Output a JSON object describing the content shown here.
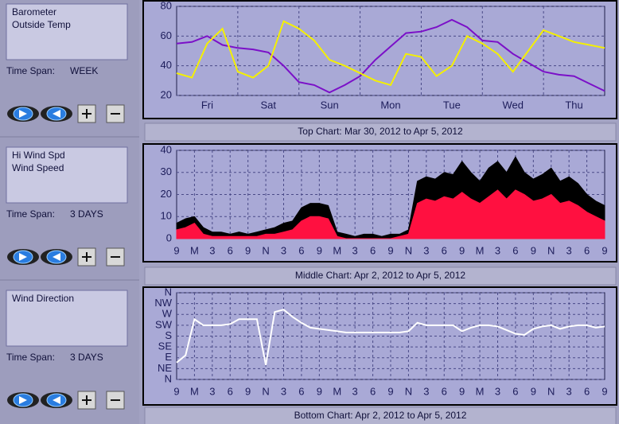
{
  "panels": [
    {
      "labels": [
        "Barometer",
        "Outside Temp"
      ],
      "time_span_label": "Time Span:",
      "time_span": "WEEK",
      "caption": "Top Chart:  Mar 30, 2012  to  Apr 5, 2012",
      "chart": {
        "type": "line",
        "categories": [
          "Fri",
          "Sat",
          "Sun",
          "Mon",
          "Tue",
          "Wed",
          "Thu"
        ],
        "ylim": [
          20,
          80
        ],
        "yticks": [
          20,
          40,
          60,
          80
        ],
        "grid": true,
        "series": [
          {
            "name": "Barometer",
            "color": "#7b10c8",
            "values": [
              55,
              56,
              60,
              54,
              52,
              51,
              49,
              40,
              29,
              27,
              22,
              27,
              33,
              44,
              53,
              62,
              63,
              66,
              71,
              66,
              57,
              56,
              48,
              42,
              36,
              34,
              33,
              28,
              23
            ]
          },
          {
            "name": "Outside Temp",
            "color": "#f4f000",
            "values": [
              35,
              32,
              55,
              65,
              36,
              32,
              40,
              70,
              65,
              57,
              44,
              40,
              35,
              30,
              27,
              48,
              46,
              33,
              40,
              60,
              55,
              48,
              36,
              50,
              64,
              60,
              56,
              54,
              52
            ]
          }
        ]
      }
    },
    {
      "labels": [
        "Hi Wind Spd",
        "Wind Speed"
      ],
      "time_span_label": "Time Span:",
      "time_span": "3 DAYS",
      "caption": "Middle Chart:  Apr 2, 2012  to  Apr 5, 2012",
      "chart": {
        "type": "area",
        "x_labels": [
          "9",
          "M",
          "3",
          "6",
          "9",
          "N",
          "3",
          "6",
          "9",
          "M",
          "3",
          "6",
          "9",
          "N",
          "3",
          "6",
          "9",
          "M",
          "3",
          "6",
          "9",
          "N",
          "3",
          "6",
          "9"
        ],
        "ylim": [
          0,
          40
        ],
        "yticks": [
          0,
          10,
          20,
          30,
          40
        ],
        "grid": true,
        "series": [
          {
            "name": "Hi Wind Spd",
            "color": "#000000",
            "values": [
              7,
              9,
              10,
              5,
              3,
              3,
              2,
              3,
              2,
              3,
              4,
              5,
              7,
              8,
              14,
              16,
              16,
              15,
              3,
              2,
              1,
              2,
              2,
              1,
              2,
              2,
              4,
              26,
              28,
              27,
              30,
              29,
              35,
              30,
              26,
              32,
              35,
              30,
              37,
              30,
              27,
              29,
              32,
              26,
              28,
              25,
              20,
              17,
              15
            ]
          },
          {
            "name": "Wind Speed",
            "color": "#ff1040",
            "values": [
              4,
              5,
              7,
              2,
              1,
              1,
              1,
              1,
              1,
              1,
              2,
              2,
              3,
              4,
              8,
              10,
              10,
              9,
              1,
              0,
              0,
              0,
              0,
              0,
              0,
              1,
              2,
              16,
              18,
              17,
              19,
              18,
              21,
              18,
              16,
              19,
              22,
              18,
              22,
              20,
              17,
              18,
              20,
              16,
              17,
              15,
              12,
              10,
              8
            ]
          }
        ]
      }
    },
    {
      "labels": [
        "Wind Direction"
      ],
      "time_span_label": "Time Span:",
      "time_span": "3 DAYS",
      "caption": "Bottom Chart:  Apr 2, 2012  to  Apr 5, 2012",
      "chart": {
        "type": "line",
        "x_labels": [
          "9",
          "M",
          "3",
          "6",
          "9",
          "N",
          "3",
          "6",
          "9",
          "M",
          "3",
          "6",
          "9",
          "N",
          "3",
          "6",
          "9",
          "M",
          "3",
          "6",
          "9",
          "N",
          "3",
          "6",
          "9"
        ],
        "ylim": [
          0,
          360
        ],
        "grid": true,
        "yticks": [
          {
            "value": 0,
            "label": "N"
          },
          {
            "value": 45,
            "label": "NE"
          },
          {
            "value": 90,
            "label": "E"
          },
          {
            "value": 135,
            "label": "SE"
          },
          {
            "value": 180,
            "label": "S"
          },
          {
            "value": 225,
            "label": "SW"
          },
          {
            "value": 270,
            "label": "W"
          },
          {
            "value": 315,
            "label": "NW"
          },
          {
            "value": 360,
            "label": "N"
          }
        ],
        "series": [
          {
            "name": "Wind Direction",
            "color": "#ffffff",
            "values": [
              70,
              100,
              250,
              225,
              225,
              225,
              230,
              250,
              250,
              250,
              60,
              280,
              290,
              260,
              235,
              215,
              210,
              205,
              200,
              195,
              195,
              195,
              195,
              195,
              195,
              195,
              200,
              235,
              225,
              225,
              225,
              225,
              200,
              215,
              225,
              225,
              220,
              205,
              190,
              185,
              210,
              220,
              225,
              210,
              220,
              225,
              225,
              215,
              220
            ]
          }
        ]
      }
    }
  ]
}
